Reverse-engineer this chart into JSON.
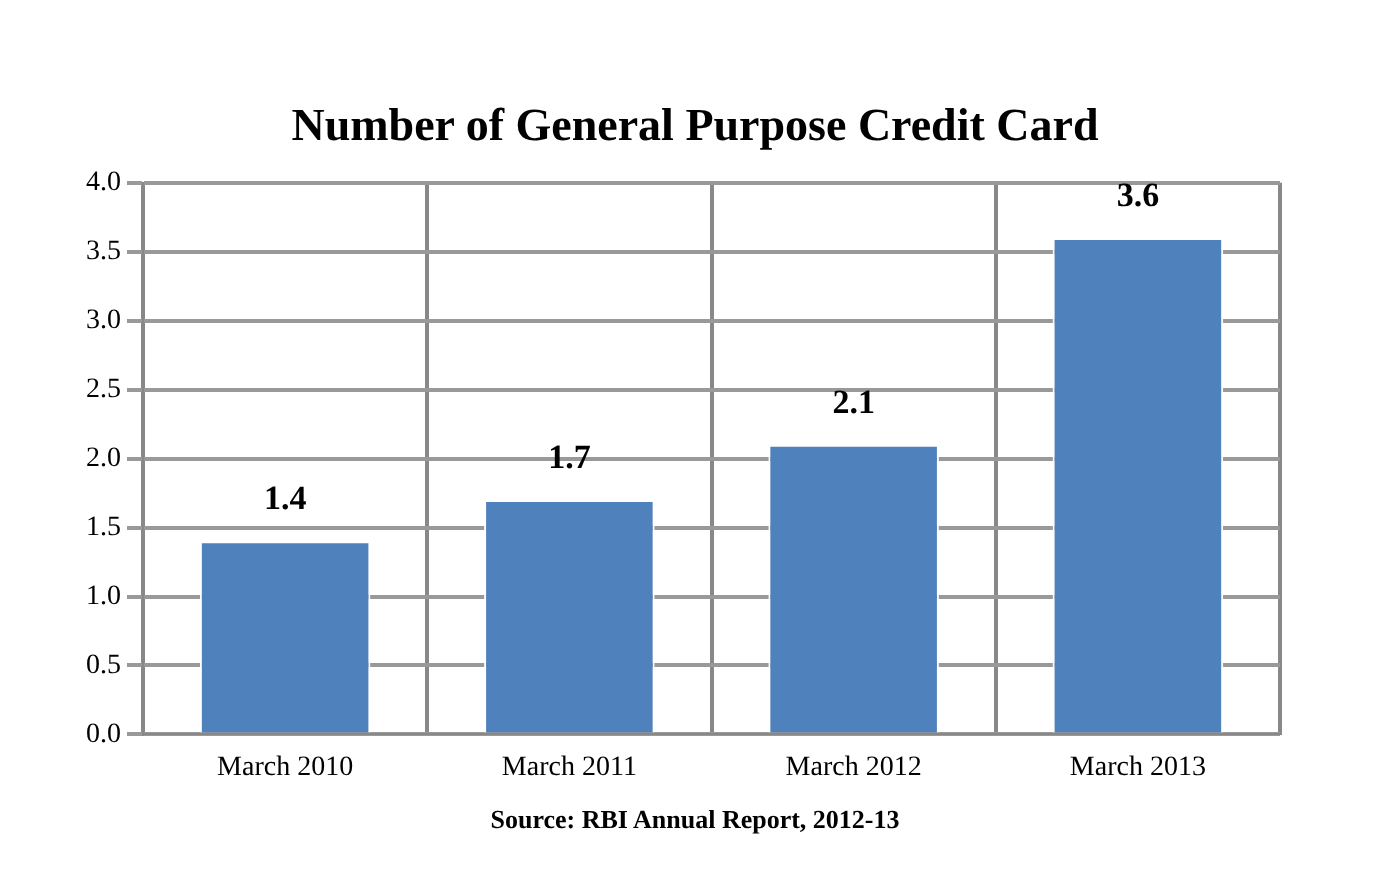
{
  "chart_data": {
    "type": "bar",
    "title": "Number of General Purpose Credit Card",
    "categories": [
      "March 2010",
      "March 2011",
      "March 2012",
      "March 2013"
    ],
    "values": [
      1.4,
      1.7,
      2.1,
      3.6
    ],
    "color": "#4f81bd",
    "ylim": [
      0,
      4
    ],
    "yticks": [
      {
        "value": 0,
        "label": "0.0"
      },
      {
        "value": 0.5,
        "label": "0.5"
      },
      {
        "value": 1,
        "label": "1.0"
      },
      {
        "value": 1.5,
        "label": "1.5"
      },
      {
        "value": 2,
        "label": "2.0"
      },
      {
        "value": 2.5,
        "label": "2.5"
      },
      {
        "value": 3,
        "label": "3.0"
      },
      {
        "value": 3.5,
        "label": "3.5"
      },
      {
        "value": 4,
        "label": "4.0"
      }
    ],
    "grid": true,
    "data_labels": true,
    "annotations": [
      "Source: RBI Annual Report, 2012-13"
    ]
  }
}
